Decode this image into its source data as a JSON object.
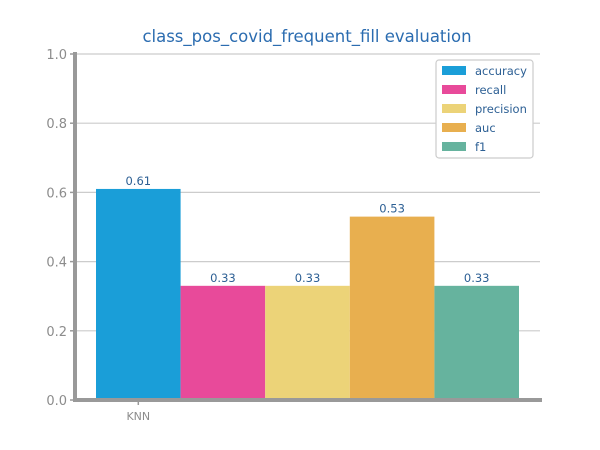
{
  "chart_data": {
    "type": "bar",
    "title": "class_pos_covid_frequent_fill evaluation",
    "xlabel": "",
    "ylabel": "",
    "categories": [
      "KNN"
    ],
    "series": [
      {
        "name": "accuracy",
        "values": [
          0.61
        ],
        "color": "#1a9ed8",
        "label": "0.61"
      },
      {
        "name": "recall",
        "values": [
          0.33
        ],
        "color": "#e84a9a",
        "label": "0.33"
      },
      {
        "name": "precision",
        "values": [
          0.33
        ],
        "color": "#ecd378",
        "label": "0.33"
      },
      {
        "name": "auc",
        "values": [
          0.53
        ],
        "color": "#e8af4f",
        "label": "0.53"
      },
      {
        "name": "f1",
        "values": [
          0.33
        ],
        "color": "#66b39e",
        "label": "0.33"
      }
    ],
    "yticks": [
      "0.0",
      "0.2",
      "0.4",
      "0.6",
      "0.8",
      "1.0"
    ],
    "ylim": [
      0,
      1
    ],
    "grid": true,
    "legend_position": "top-right"
  }
}
